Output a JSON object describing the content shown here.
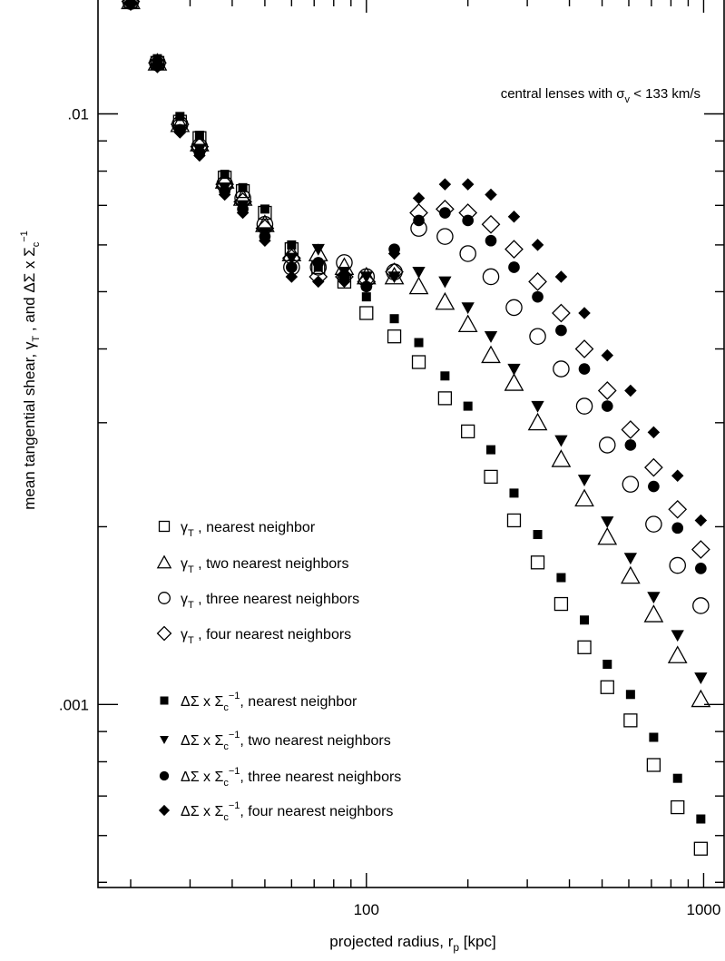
{
  "chart_data": {
    "type": "scatter",
    "x_scale": "log",
    "y_scale": "log",
    "xlim": [
      16,
      1150
    ],
    "ylim": [
      0.00049,
      0.0157
    ],
    "xlabel": "projected radius, r",
    "xlabel_sub": "p",
    "xlabel_tail": " [kpc]",
    "ylabel": "mean tangential shear, γT , and ΔΣ x Σc−1",
    "x_ticks": [
      {
        "value": 100,
        "label": "100"
      },
      {
        "value": 1000,
        "label": "1000"
      }
    ],
    "y_ticks": [
      {
        "value": 0.01,
        "label": ".01"
      },
      {
        "value": 0.001,
        "label": ".001"
      }
    ],
    "annotation": {
      "text": "central lenses with σ",
      "sub": "v",
      "tail": " < 133 km/s"
    },
    "legend_position": "bottom-left",
    "series": [
      {
        "name": "γT , nearest neighbor",
        "label_main": "γ",
        "label_sub": "T",
        "label_tail": " , nearest neighbor",
        "marker": "square",
        "filled": false,
        "x": [
          20,
          24,
          28,
          32,
          38,
          43,
          50,
          60,
          72,
          86,
          100,
          121,
          143,
          171,
          200,
          234,
          274,
          322,
          378,
          443,
          518,
          607,
          711,
          837,
          981
        ],
        "y": [
          0.0155,
          0.0122,
          0.0097,
          0.0091,
          0.0078,
          0.0074,
          0.0068,
          0.0059,
          0.0055,
          0.0052,
          0.0046,
          0.0042,
          0.0038,
          0.0033,
          0.0029,
          0.00243,
          0.00205,
          0.00174,
          0.00148,
          0.00125,
          0.00107,
          0.00094,
          0.00079,
          0.00067,
          0.00057
        ]
      },
      {
        "name": "γT , two nearest neighbors",
        "label_main": "γ",
        "label_sub": "T",
        "label_tail": " , two nearest neighbors",
        "marker": "triangle-up",
        "filled": false,
        "x": [
          20,
          24,
          28,
          32,
          38,
          43,
          50,
          60,
          72,
          86,
          100,
          121,
          143,
          171,
          200,
          234,
          274,
          322,
          378,
          443,
          518,
          607,
          711,
          837,
          981
        ],
        "y": [
          0.0155,
          0.0122,
          0.0096,
          0.0089,
          0.0077,
          0.0072,
          0.0065,
          0.0058,
          0.0058,
          0.0055,
          0.0053,
          0.0053,
          0.0051,
          0.0048,
          0.0044,
          0.0039,
          0.0035,
          0.003,
          0.0026,
          0.00223,
          0.00192,
          0.00165,
          0.00142,
          0.00121,
          0.00102
        ]
      },
      {
        "name": "γT , three nearest neighbors",
        "label_main": "γ",
        "label_sub": "T",
        "label_tail": " , three nearest neighbors",
        "marker": "circle",
        "filled": false,
        "x": [
          20,
          24,
          28,
          32,
          38,
          43,
          50,
          60,
          72,
          86,
          100,
          121,
          143,
          171,
          200,
          234,
          274,
          322,
          378,
          443,
          518,
          607,
          711,
          837,
          981
        ],
        "y": [
          0.0155,
          0.0122,
          0.0096,
          0.0088,
          0.0076,
          0.0072,
          0.0065,
          0.0055,
          0.0055,
          0.0056,
          0.0053,
          0.0054,
          0.0064,
          0.0062,
          0.0058,
          0.0053,
          0.0047,
          0.0042,
          0.0037,
          0.0032,
          0.00275,
          0.00236,
          0.00202,
          0.00172,
          0.00147
        ]
      },
      {
        "name": "γT , four nearest neighbors",
        "label_main": "γ",
        "label_sub": "T",
        "label_tail": " , four nearest neighbors",
        "marker": "diamond",
        "filled": false,
        "x": [
          20,
          24,
          28,
          32,
          38,
          43,
          50,
          60,
          72,
          86,
          100,
          121,
          143,
          171,
          200,
          234,
          274,
          322,
          378,
          443,
          518,
          607,
          711,
          837,
          981
        ],
        "y": [
          0.0155,
          0.0122,
          0.0096,
          0.0088,
          0.0076,
          0.0071,
          0.0064,
          0.0057,
          0.0053,
          0.0053,
          0.0052,
          0.0054,
          0.0068,
          0.0069,
          0.0068,
          0.0065,
          0.0059,
          0.0052,
          0.0046,
          0.004,
          0.0034,
          0.00292,
          0.00252,
          0.00214,
          0.00183
        ]
      },
      {
        "name": "ΔΣ x Σc−1, nearest neighbor",
        "label_main": "ΔΣ x Σ",
        "label_sub": "c",
        "label_sup": "−1",
        "label_tail": ", nearest neighbor",
        "marker": "square",
        "filled": true,
        "x": [
          20,
          24,
          28,
          32,
          38,
          43,
          50,
          60,
          72,
          86,
          100,
          121,
          143,
          171,
          200,
          234,
          274,
          322,
          378,
          443,
          518,
          607,
          711,
          837,
          981
        ],
        "y": [
          0.0157,
          0.0124,
          0.0099,
          0.0092,
          0.0079,
          0.0075,
          0.0069,
          0.006,
          0.0055,
          0.0053,
          0.0049,
          0.0045,
          0.0041,
          0.0036,
          0.0032,
          0.0027,
          0.00228,
          0.00194,
          0.00164,
          0.00139,
          0.00117,
          0.00104,
          0.00088,
          0.00075,
          0.00064
        ]
      },
      {
        "name": "ΔΣ x Σc−1, two nearest neighbors",
        "label_main": "ΔΣ x Σ",
        "label_sub": "c",
        "label_sup": "−1",
        "label_tail": ", two nearest neighbors",
        "marker": "triangle-down",
        "filled": true,
        "x": [
          20,
          24,
          28,
          32,
          38,
          43,
          50,
          60,
          72,
          86,
          100,
          121,
          143,
          171,
          200,
          234,
          274,
          322,
          378,
          443,
          518,
          607,
          711,
          837,
          981
        ],
        "y": [
          0.0155,
          0.0121,
          0.0094,
          0.0087,
          0.0075,
          0.007,
          0.0063,
          0.0057,
          0.0059,
          0.0054,
          0.0053,
          0.0053,
          0.0054,
          0.0052,
          0.0047,
          0.0042,
          0.0037,
          0.0032,
          0.0028,
          0.0024,
          0.00204,
          0.00177,
          0.00152,
          0.00131,
          0.00111
        ]
      },
      {
        "name": "ΔΣ x Σc−1, three nearest neighbors",
        "label_main": "ΔΣ x Σ",
        "label_sub": "c",
        "label_sup": "−1",
        "label_tail": ", three nearest neighbors",
        "marker": "circle",
        "filled": true,
        "x": [
          20,
          24,
          28,
          32,
          38,
          43,
          50,
          60,
          72,
          86,
          100,
          121,
          143,
          171,
          200,
          234,
          274,
          322,
          378,
          443,
          518,
          607,
          711,
          837,
          981
        ],
        "y": [
          0.0154,
          0.0121,
          0.0094,
          0.0086,
          0.0074,
          0.0069,
          0.0062,
          0.0055,
          0.0056,
          0.0053,
          0.0051,
          0.0059,
          0.0066,
          0.0068,
          0.0066,
          0.0061,
          0.0055,
          0.0049,
          0.0043,
          0.0037,
          0.0032,
          0.00275,
          0.00234,
          0.00199,
          0.0017
        ]
      },
      {
        "name": "ΔΣ x Σc−1, four nearest neighbors",
        "label_main": "ΔΣ x Σ",
        "label_sub": "c",
        "label_sup": "−1",
        "label_tail": ", four nearest neighbors",
        "marker": "diamond",
        "filled": true,
        "x": [
          20,
          24,
          28,
          32,
          38,
          43,
          50,
          60,
          72,
          86,
          100,
          121,
          143,
          171,
          200,
          234,
          274,
          322,
          378,
          443,
          518,
          607,
          711,
          837,
          981
        ],
        "y": [
          0.0154,
          0.012,
          0.0093,
          0.0085,
          0.0073,
          0.0068,
          0.0061,
          0.0053,
          0.0052,
          0.0052,
          0.0051,
          0.0058,
          0.0072,
          0.0076,
          0.0076,
          0.0073,
          0.0067,
          0.006,
          0.0053,
          0.0046,
          0.0039,
          0.0034,
          0.00289,
          0.00244,
          0.00205
        ]
      }
    ]
  },
  "colors": {
    "ink": "#000000",
    "background": "#ffffff"
  }
}
